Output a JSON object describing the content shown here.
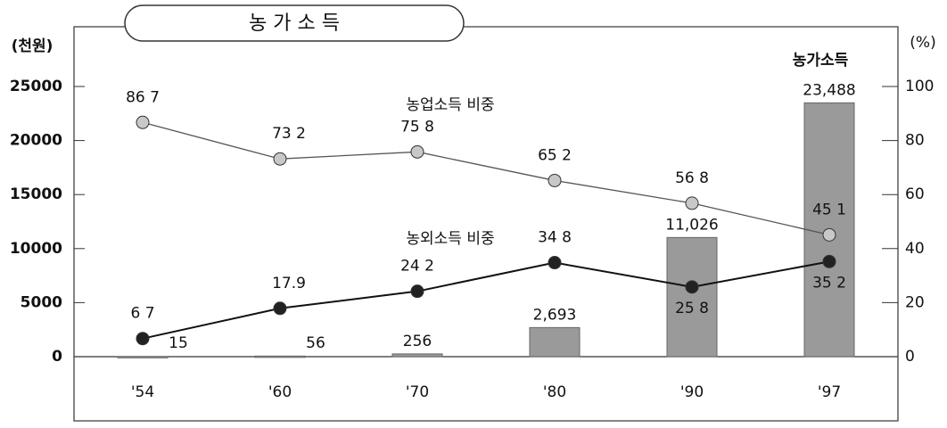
{
  "chart_data": {
    "type": "bar",
    "title": "농 가 소 득",
    "ylabel": "(천원)",
    "y2label": "(%)",
    "categories": [
      "'54",
      "'60",
      "'70",
      "'80",
      "'90",
      "'97"
    ],
    "ylim": [
      0,
      25000
    ],
    "yticks": [
      0,
      5000,
      10000,
      15000,
      20000,
      25000
    ],
    "y2lim": [
      0,
      100
    ],
    "y2ticks": [
      0,
      20,
      40,
      60,
      80,
      100
    ],
    "series": [
      {
        "name": "농가소득",
        "type": "bar",
        "color": "#9a9a9a",
        "values": [
          15,
          56,
          256,
          2693,
          11026,
          23488
        ],
        "value_labels": [
          "15",
          "56",
          "256",
          "2,693",
          "11,026",
          "23,488"
        ]
      },
      {
        "name": "농업소득 비중",
        "type": "line",
        "axis": "y2",
        "color": "#c8c8c8",
        "values": [
          86.7,
          73.2,
          75.8,
          65.2,
          56.8,
          45.1
        ],
        "value_labels": [
          "86 7",
          "73 2",
          "75 8",
          "65 2",
          "56 8",
          "45 1"
        ]
      },
      {
        "name": "농외소득 비중",
        "type": "line",
        "axis": "y2",
        "color": "#222222",
        "values": [
          6.7,
          17.9,
          24.2,
          34.8,
          25.8,
          35.2
        ],
        "value_labels": [
          "6 7",
          "17.9",
          "24 2",
          "34 8",
          "25 8",
          "35 2"
        ]
      }
    ]
  }
}
